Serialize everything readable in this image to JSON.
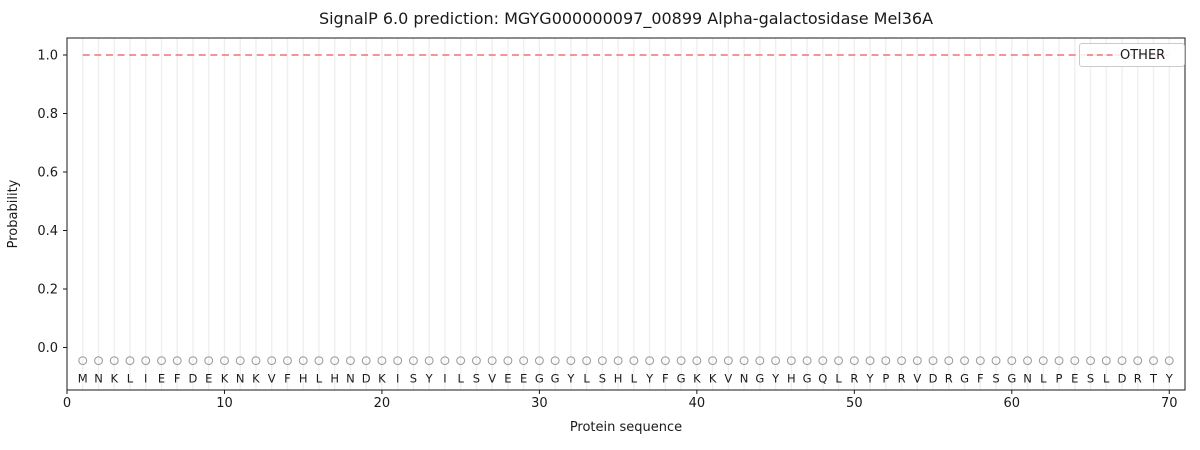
{
  "chart_data": {
    "type": "line",
    "title": "SignalP 6.0 prediction: MGYG000000097_00899 Alpha-galactosidase Mel36A",
    "xlabel": "Protein sequence",
    "ylabel": "Probability",
    "xlim": [
      0,
      71
    ],
    "ylim": [
      -0.145,
      1.06
    ],
    "xticks": [
      0,
      10,
      20,
      30,
      40,
      50,
      60,
      70
    ],
    "yticks": [
      0.0,
      0.2,
      0.4,
      0.6,
      0.8,
      1.0
    ],
    "grid": {
      "vertical_per_residue": true,
      "horizontal": false
    },
    "legend": {
      "position": "upper-right",
      "entries": [
        {
          "label": "OTHER",
          "line_style": "dashed",
          "color": "#f38585"
        }
      ]
    },
    "sequence": "MNKLIEFDEKNKVFHLHNDKISYILSVEEGGYLSHLYFGKKVNGYHGQLRYPRVDRGFSGNLPESLDRTY",
    "series": [
      {
        "name": "OTHER",
        "x_start": 1,
        "x_end": 70,
        "values": [
          1.0,
          1.0,
          1.0,
          1.0,
          1.0,
          1.0,
          1.0,
          1.0,
          1.0,
          1.0,
          1.0,
          1.0,
          1.0,
          1.0,
          1.0,
          1.0,
          1.0,
          1.0,
          1.0,
          1.0,
          1.0,
          1.0,
          1.0,
          1.0,
          1.0,
          1.0,
          1.0,
          1.0,
          1.0,
          1.0,
          1.0,
          1.0,
          1.0,
          1.0,
          1.0,
          1.0,
          1.0,
          1.0,
          1.0,
          1.0,
          1.0,
          1.0,
          1.0,
          1.0,
          1.0,
          1.0,
          1.0,
          1.0,
          1.0,
          1.0,
          1.0,
          1.0,
          1.0,
          1.0,
          1.0,
          1.0,
          1.0,
          1.0,
          1.0,
          1.0,
          1.0,
          1.0,
          1.0,
          1.0,
          1.0,
          1.0,
          1.0,
          1.0,
          1.0,
          1.0
        ]
      }
    ],
    "residue_markers": {
      "marker": "o",
      "y": -0.045
    },
    "residue_letters_y": -0.105,
    "colors": {
      "other_line": "#f38585",
      "grid": "#efefef",
      "axis": "#1a1a1a",
      "marker_edge": "#9e9e9e",
      "letter": "#2b2b2b"
    }
  }
}
